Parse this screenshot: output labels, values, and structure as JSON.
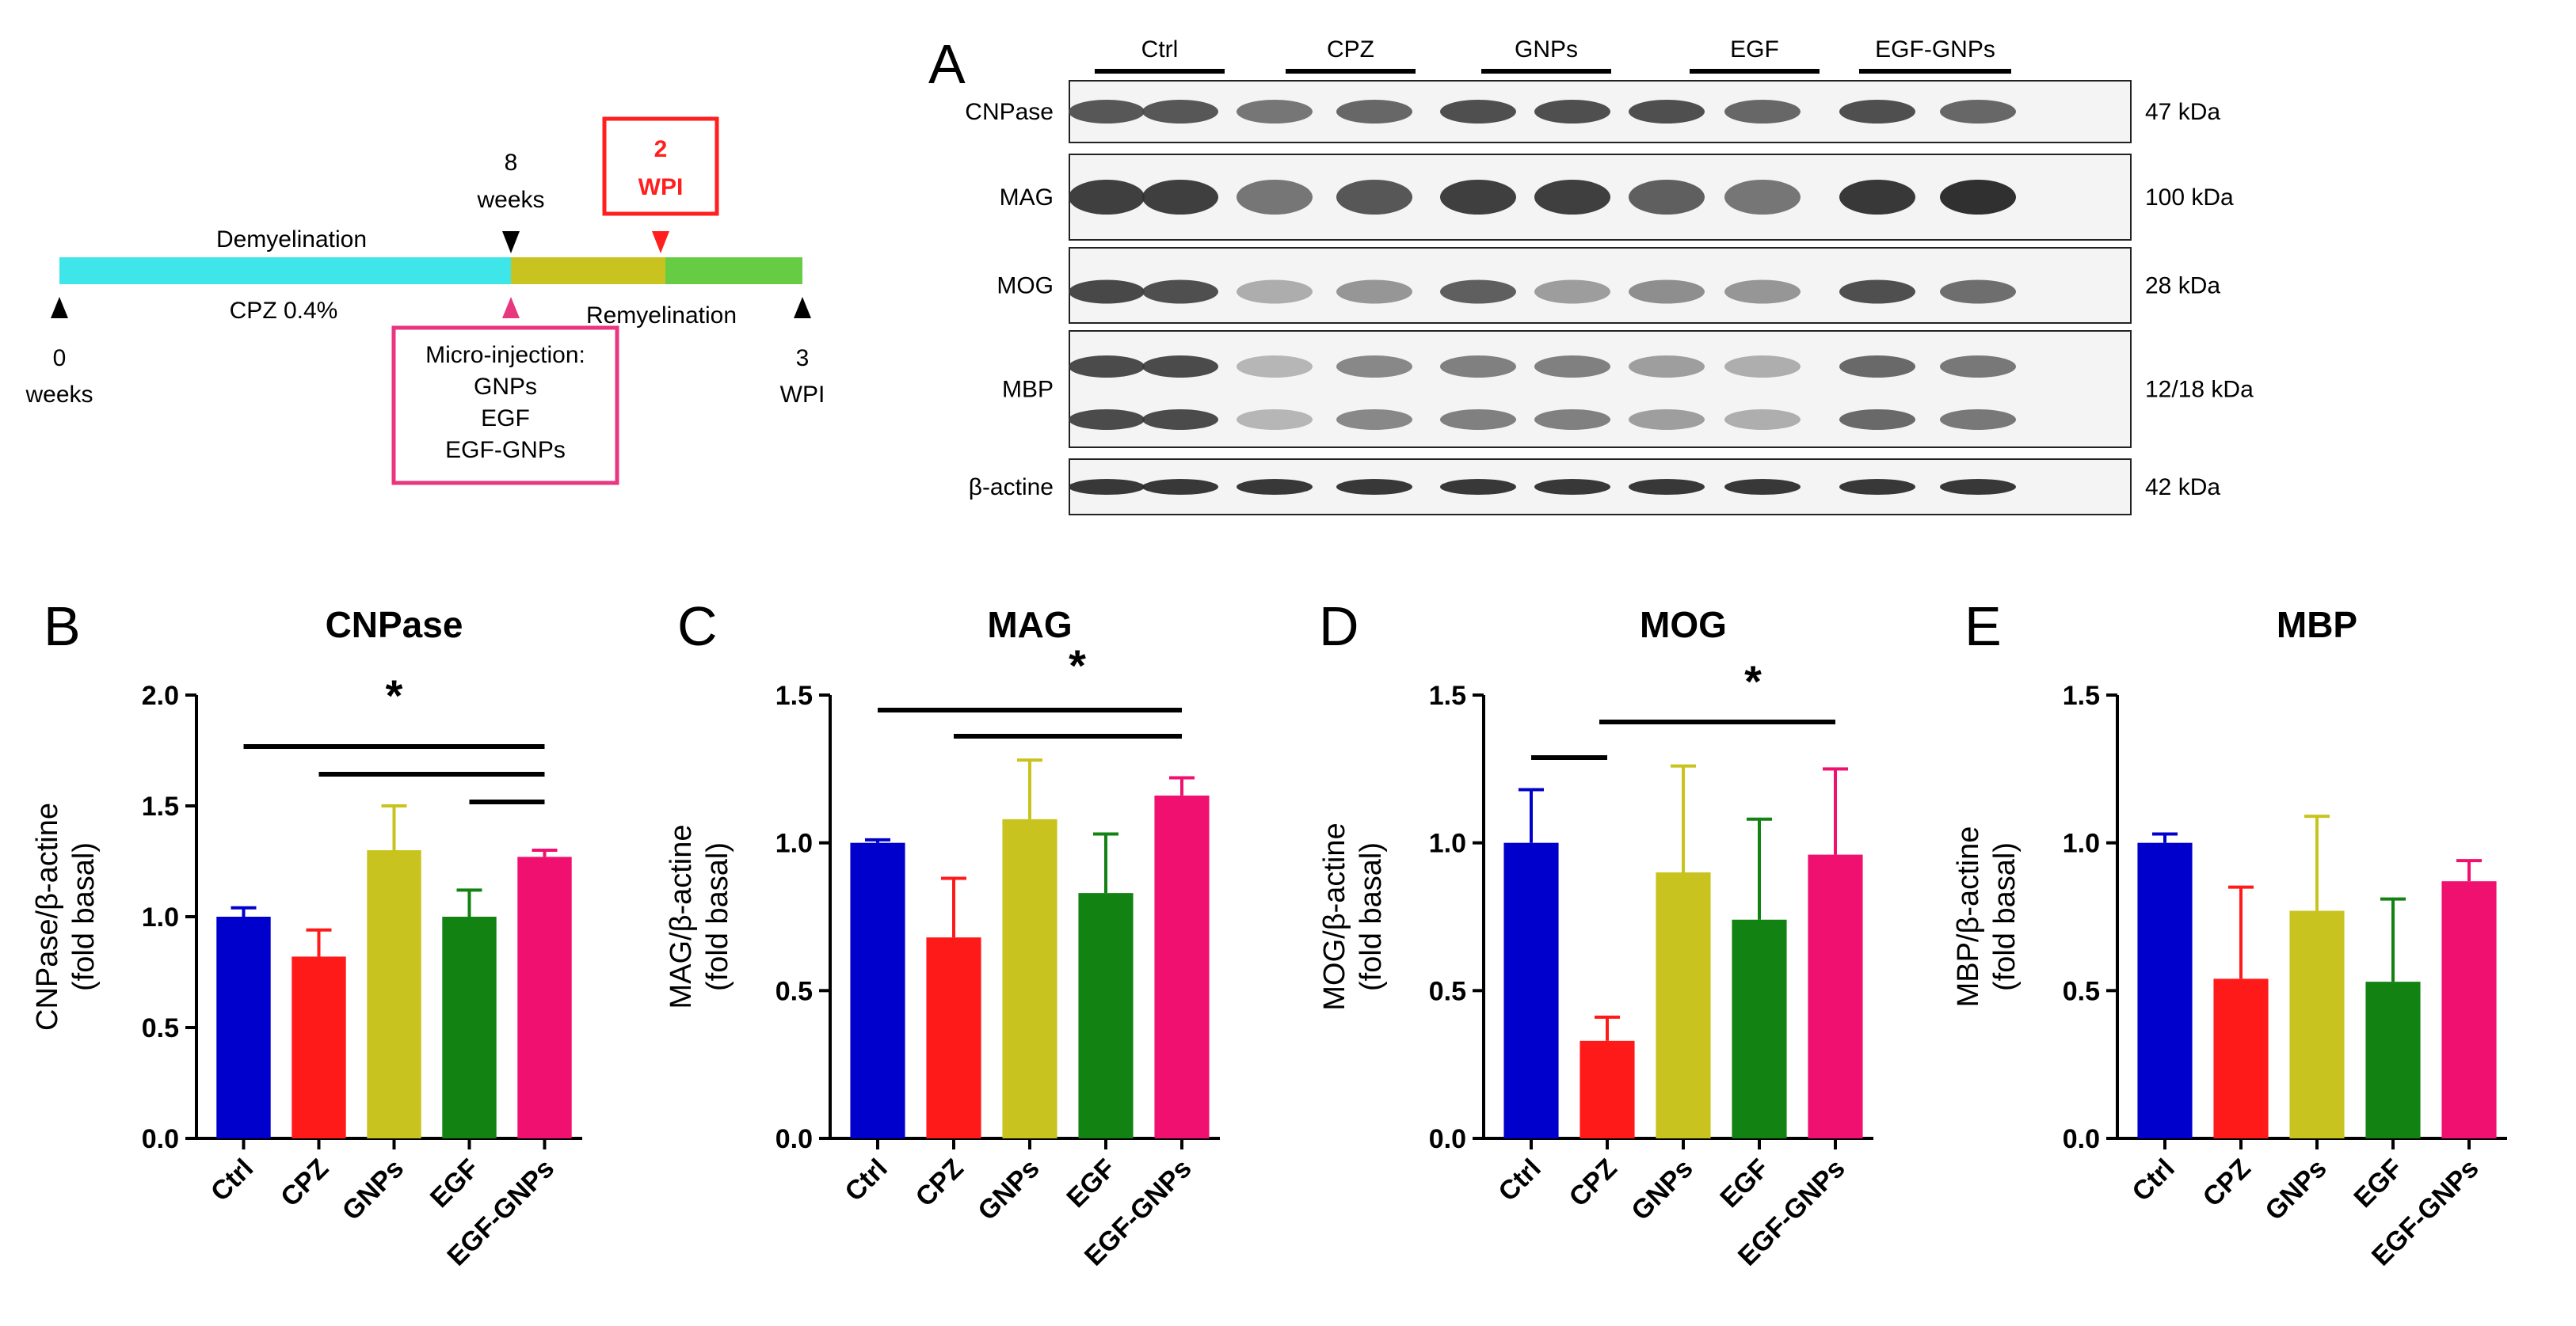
{
  "timeline": {
    "demyelination_label": "Demyelination",
    "cpz_label": "CPZ 0.4%",
    "remyelination_label": "Remyelination",
    "start_value": "0",
    "start_unit": "weeks",
    "mid_value": "8",
    "mid_unit": "weeks",
    "wpi_value": "2",
    "wpi_unit": "WPI",
    "end_value": "3",
    "end_unit": "WPI",
    "injection_box": [
      "Micro-injection:",
      "GNPs",
      "EGF",
      "EGF-GNPs"
    ],
    "colors": {
      "demyelination": "#3ee6ea",
      "remyelination_early": "#c8c31e",
      "remyelination_late": "#66cc44",
      "highlight": "#ff1f1f",
      "injection": "#e8377f"
    }
  },
  "blot": {
    "panel_letter": "A",
    "groups": [
      "Ctrl",
      "CPZ",
      "GNPs",
      "EGF",
      "EGF-GNPs"
    ],
    "proteins": [
      "CNPase",
      "MAG",
      "MOG",
      "MBP",
      "β-actine"
    ],
    "sizes": [
      "47 kDa",
      "100 kDa",
      "28 kDa",
      "12/18 kDa",
      "42 kDa"
    ],
    "band_intensity": [
      [
        0.75,
        0.75,
        0.55,
        0.65,
        0.8,
        0.8,
        0.8,
        0.65,
        0.8,
        0.65
      ],
      [
        0.9,
        0.9,
        0.55,
        0.75,
        0.9,
        0.9,
        0.7,
        0.55,
        0.95,
        1.0
      ],
      [
        0.85,
        0.8,
        0.2,
        0.35,
        0.7,
        0.3,
        0.4,
        0.35,
        0.8,
        0.6
      ],
      [
        0.85,
        0.85,
        0.15,
        0.45,
        0.5,
        0.5,
        0.3,
        0.2,
        0.65,
        0.55
      ],
      [
        0.95,
        0.95,
        0.95,
        0.95,
        0.95,
        0.95,
        0.95,
        0.95,
        0.95,
        0.95
      ]
    ]
  },
  "chart_data": [
    {
      "panel_letter": "B",
      "type": "bar",
      "title": "CNPase",
      "ylabel_line1": "CNPase/β-actine",
      "ylabel_line2": "(fold basal)",
      "categories": [
        "Ctrl",
        "CPZ",
        "GNPs",
        "EGF",
        "EGF-GNPs"
      ],
      "values": [
        1.0,
        0.82,
        1.3,
        1.0,
        1.27
      ],
      "errors": [
        0.04,
        0.12,
        0.2,
        0.12,
        0.03
      ],
      "ylim": [
        0,
        2.0
      ],
      "yticks": [
        "0.0",
        "0.5",
        "1.0",
        "1.5",
        "2.0"
      ],
      "sig_lines": [
        [
          0,
          4
        ],
        [
          1,
          4
        ],
        [
          3,
          4
        ]
      ],
      "sig_text": "*"
    },
    {
      "panel_letter": "C",
      "type": "bar",
      "title": "MAG",
      "ylabel_line1": "MAG/β-actine",
      "ylabel_line2": "(fold basal)",
      "categories": [
        "Ctrl",
        "CPZ",
        "GNPs",
        "EGF",
        "EGF-GNPs"
      ],
      "values": [
        1.0,
        0.68,
        1.08,
        0.83,
        1.16
      ],
      "errors": [
        0.01,
        0.2,
        0.2,
        0.2,
        0.06
      ],
      "ylim": [
        0,
        1.5
      ],
      "yticks": [
        "0.0",
        "0.5",
        "1.0",
        "1.5"
      ],
      "sig_lines": [
        [
          0,
          4
        ],
        [
          1,
          4
        ]
      ],
      "sig_text": "*"
    },
    {
      "panel_letter": "D",
      "type": "bar",
      "title": "MOG",
      "ylabel_line1": "MOG/β-actine",
      "ylabel_line2": "(fold basal)",
      "categories": [
        "Ctrl",
        "CPZ",
        "GNPs",
        "EGF",
        "EGF-GNPs"
      ],
      "values": [
        1.0,
        0.33,
        0.9,
        0.74,
        0.96
      ],
      "errors": [
        0.18,
        0.08,
        0.36,
        0.34,
        0.29
      ],
      "ylim": [
        0,
        1.5
      ],
      "yticks": [
        "0.0",
        "0.5",
        "1.0",
        "1.5"
      ],
      "sig_lines": [
        [
          0,
          1
        ],
        [
          1,
          4
        ]
      ],
      "sig_text": "*"
    },
    {
      "panel_letter": "E",
      "type": "bar",
      "title": "MBP",
      "ylabel_line1": "MBP/β-actine",
      "ylabel_line2": "(fold basal)",
      "categories": [
        "Ctrl",
        "CPZ",
        "GNPs",
        "EGF",
        "EGF-GNPs"
      ],
      "values": [
        1.0,
        0.54,
        0.77,
        0.53,
        0.87
      ],
      "errors": [
        0.03,
        0.31,
        0.32,
        0.28,
        0.07
      ],
      "ylim": [
        0,
        1.5
      ],
      "yticks": [
        "0.0",
        "0.5",
        "1.0",
        "1.5"
      ],
      "sig_lines": [],
      "sig_text": ""
    }
  ],
  "bar_colors": [
    "#0000cc",
    "#ff1a1a",
    "#c8c31e",
    "#128212",
    "#f0106f"
  ]
}
